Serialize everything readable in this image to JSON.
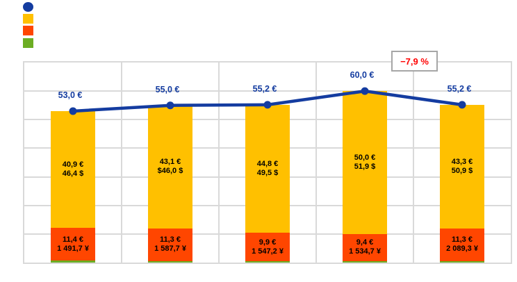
{
  "page": {
    "background": "#FFFFFF"
  },
  "legend": {
    "items": [
      {
        "name": "total-line-series",
        "marker": "circle",
        "color": "#143CA0",
        "label": ""
      },
      {
        "name": "orange-series",
        "marker": "square",
        "color": "#FFC000",
        "label": ""
      },
      {
        "name": "red-series",
        "marker": "square",
        "color": "#FF4600",
        "label": ""
      },
      {
        "name": "green-series",
        "marker": "square",
        "color": "#6CAD23",
        "label": ""
      }
    ]
  },
  "annotation": {
    "text": "−7,9 %",
    "color": "#FF0000",
    "border_color": "#A6A6A6"
  },
  "colors": {
    "line": "#143CA0",
    "orange": "#FFC000",
    "red": "#FF4600",
    "green": "#6CAD23",
    "gridline": "#D9D9D9",
    "bar_label": "#000000"
  },
  "chart_data": {
    "type": "bar",
    "subtype": "stacked-bar-with-line",
    "categories": [
      "",
      "",
      "",
      "",
      ""
    ],
    "ylim": [
      0,
      70
    ],
    "grid": {
      "horizontal_step": 10,
      "vertical_between_categories": true,
      "color": "#D9D9D9"
    },
    "line_series": {
      "name": "total-eur-line",
      "color": "#143CA0",
      "values": [
        53.0,
        55.0,
        55.2,
        60.0,
        55.2
      ],
      "labels": [
        "53,0 €",
        "55,0 €",
        "55,2 €",
        "60,0 €",
        "55,2 €"
      ]
    },
    "bar_series": [
      {
        "name": "green",
        "color": "#6CAD23",
        "values": [
          0.7,
          0.6,
          0.5,
          0.6,
          0.6
        ],
        "labels_line1": [
          "",
          "",
          "",
          "",
          ""
        ],
        "labels_line2": [
          "",
          "",
          "",
          "",
          ""
        ]
      },
      {
        "name": "red",
        "color": "#FF4600",
        "values": [
          11.4,
          11.3,
          9.9,
          9.4,
          11.3
        ],
        "labels_line1": [
          "11,4 €",
          "11,3 €",
          "9,9 €",
          "9,4 €",
          "11,3 €"
        ],
        "labels_line2": [
          "1 491,7 ¥",
          "1 587,7 ¥",
          "1 547,2 ¥",
          "1 534,7 ¥",
          "2 089,3 ¥"
        ]
      },
      {
        "name": "orange",
        "color": "#FFC000",
        "values": [
          40.9,
          43.1,
          44.8,
          50.0,
          43.3
        ],
        "labels_line1": [
          "40,9 €",
          "43,1 €",
          "44,8 €",
          "50,0 €",
          "43,3 €"
        ],
        "labels_line2": [
          "46,4 $",
          "$46,0 $",
          "49,5 $",
          "51,9 $",
          "50,9 $"
        ]
      }
    ],
    "annotation": {
      "text": "−7,9 %",
      "between_points": [
        3,
        4
      ]
    }
  }
}
